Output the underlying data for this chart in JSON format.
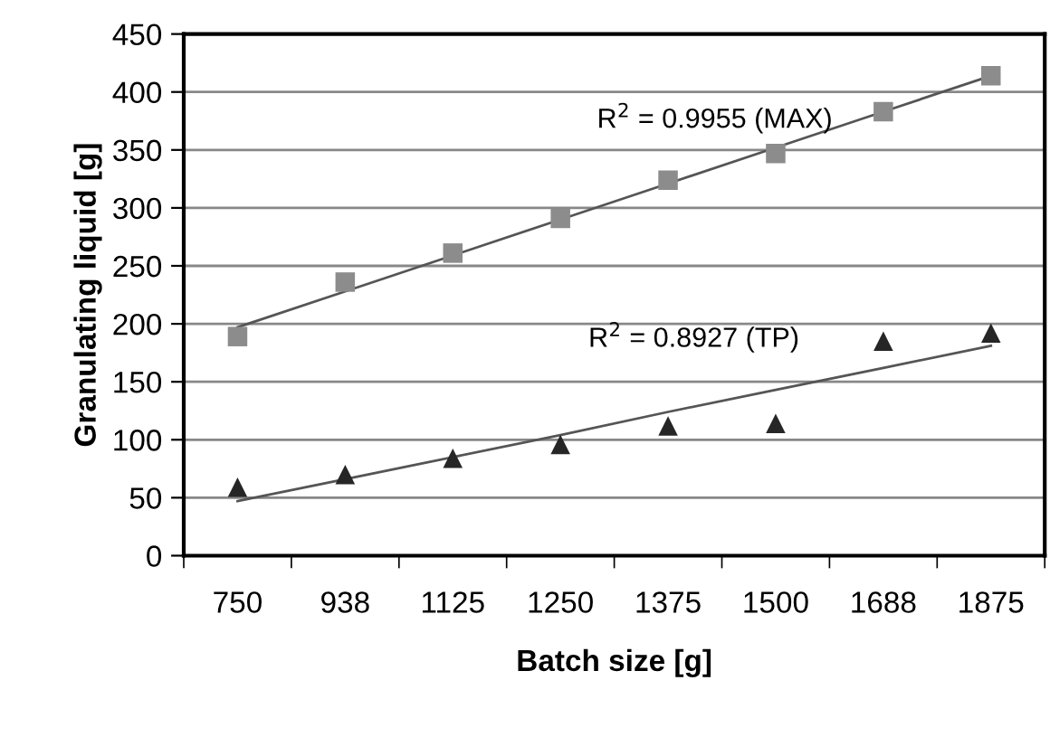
{
  "chart_data": {
    "type": "scatter",
    "xlabel": "Batch size [g]",
    "ylabel": "Granulating liquid [g]",
    "categories": [
      "750",
      "938",
      "1125",
      "1250",
      "1375",
      "1500",
      "1688",
      "1875"
    ],
    "series": [
      {
        "marker": "square",
        "color": "#8c8c8c",
        "values": [
          189,
          236,
          261,
          291,
          324,
          347,
          383,
          414
        ]
      },
      {
        "marker": "triangle",
        "color": "#262626",
        "values": [
          59,
          70,
          84,
          96,
          112,
          114,
          185,
          192
        ]
      },
      {
        "type": "line",
        "color": "#555555",
        "values": [
          197,
          228,
          259,
          290,
          321,
          352,
          383,
          414
        ]
      },
      {
        "type": "line",
        "color": "#555555",
        "values": [
          47,
          66,
          85,
          104,
          124,
          143,
          162,
          181
        ]
      }
    ],
    "ylim": [
      0,
      450
    ],
    "yticks": [
      0,
      50,
      100,
      150,
      200,
      250,
      300,
      350,
      400,
      450
    ],
    "grid": "y",
    "legend": false,
    "annotations": [
      "R$^{2}$ = 0.9955 (MAX)",
      "R$^{2}$ = 0.8927 (TP)"
    ]
  }
}
